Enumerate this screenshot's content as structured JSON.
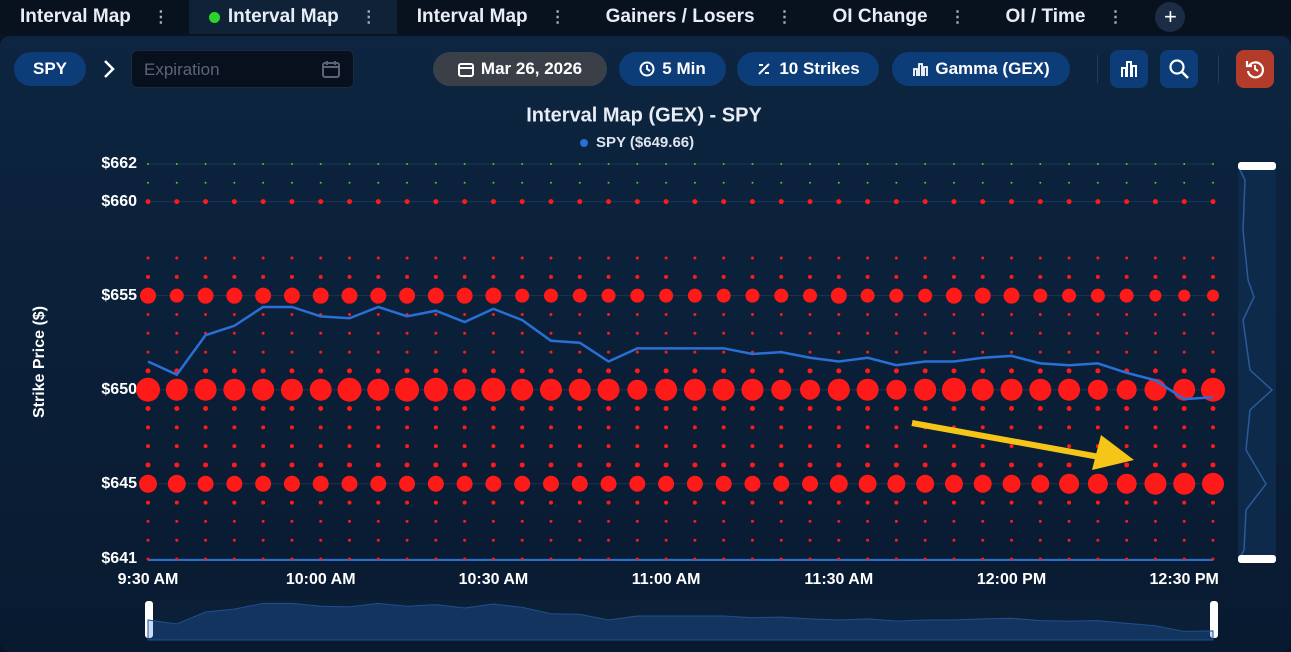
{
  "tabs": [
    "Interval Map",
    "Interval Map",
    "Interval Map",
    "Gainers / Losers",
    "OI Change",
    "OI / Time"
  ],
  "active_tab": 1,
  "add_tab": "+",
  "toolbar": {
    "symbol": "SPY",
    "expiration_placeholder": "Expiration",
    "date": "Mar 26, 2026",
    "interval": "5 Min",
    "strikes": "10 Strikes",
    "metric": "Gamma (GEX)"
  },
  "chart_data": {
    "type": "bubble",
    "title": "Interval Map (GEX) - SPY",
    "y_label": "Strike Price ($)",
    "categories": [
      "9:30 AM",
      null,
      null,
      null,
      null,
      null,
      "10:00 AM",
      null,
      null,
      null,
      null,
      null,
      "10:30 AM",
      null,
      null,
      null,
      null,
      null,
      "11:00 AM",
      null,
      null,
      null,
      null,
      null,
      "11:30 AM",
      null,
      null,
      null,
      null,
      null,
      "12:00 PM",
      null,
      null,
      null,
      null,
      null,
      "12:30 PM",
      null
    ],
    "ylim": [
      641,
      662
    ],
    "yticks": [
      {
        "value": 641,
        "label": "$641"
      },
      {
        "value": 645,
        "label": "$645"
      },
      {
        "value": 650,
        "label": "$650"
      },
      {
        "value": 655,
        "label": "$655"
      },
      {
        "value": 660,
        "label": "$660"
      },
      {
        "value": 662,
        "label": "$662"
      }
    ],
    "grid": true,
    "rows": [
      {
        "strike": 662,
        "color": "#44cc33",
        "size": 1
      },
      {
        "strike": 661,
        "color": "#44cc33",
        "size": 1
      },
      {
        "strike": 660,
        "color": "#ff1a1a",
        "size": 2.5
      },
      {
        "strike": 657,
        "color": "#ff1a1a",
        "size": 1.5
      },
      {
        "strike": 656,
        "color": "#ff1a1a",
        "size": 2
      },
      {
        "strike": 655,
        "color": "#ff1a1a",
        "sizes": [
          8,
          7,
          8,
          8,
          8,
          8,
          8,
          8,
          8,
          8,
          8,
          8,
          8,
          7,
          7,
          7,
          7,
          7,
          7,
          7,
          7,
          7,
          7,
          7,
          8,
          7,
          7,
          7,
          8,
          8,
          8,
          7,
          7,
          7,
          7,
          6,
          6,
          6
        ]
      },
      {
        "strike": 654,
        "color": "#ff1a1a",
        "size": 1.5
      },
      {
        "strike": 653,
        "color": "#ff1a1a",
        "size": 1.5
      },
      {
        "strike": 652,
        "color": "#ff1a1a",
        "size": 1.5
      },
      {
        "strike": 651,
        "color": "#ff1a1a",
        "size": 2.5
      },
      {
        "strike": 650,
        "color": "#ff1a1a",
        "sizes": [
          12,
          11,
          11,
          11,
          11,
          11,
          11,
          12,
          11,
          12,
          12,
          11,
          12,
          11,
          11,
          11,
          11,
          10,
          11,
          11,
          11,
          11,
          10,
          10,
          11,
          11,
          10,
          11,
          12,
          11,
          11,
          11,
          11,
          10,
          10,
          11,
          11,
          12
        ]
      },
      {
        "strike": 649,
        "color": "#ff1a1a",
        "size": 2.5
      },
      {
        "strike": 648,
        "color": "#ff1a1a",
        "size": 2
      },
      {
        "strike": 647,
        "color": "#ff1a1a",
        "size": 2
      },
      {
        "strike": 646,
        "color": "#ff1a1a",
        "size": 2.5
      },
      {
        "strike": 645,
        "color": "#ff1a1a",
        "sizes": [
          9,
          9,
          8,
          8,
          8,
          8,
          8,
          8,
          8,
          8,
          8,
          8,
          8,
          8,
          8,
          8,
          8,
          8,
          8,
          8,
          8,
          8,
          8,
          8,
          9,
          9,
          9,
          9,
          9,
          9,
          9,
          9,
          10,
          10,
          10,
          11,
          11,
          11
        ]
      },
      {
        "strike": 644,
        "color": "#ff1a1a",
        "size": 2
      },
      {
        "strike": 643,
        "color": "#ff1a1a",
        "size": 1.5
      },
      {
        "strike": 642,
        "color": "#ff1a1a",
        "size": 1.5
      },
      {
        "strike": 641,
        "color": "#ff1a1a",
        "size": 1.5
      }
    ],
    "series": [
      {
        "name": "SPY ($649.66)",
        "color": "#2a6fd6",
        "values": [
          651.5,
          650.8,
          652.9,
          653.4,
          654.4,
          654.4,
          653.9,
          653.8,
          654.4,
          653.9,
          654.2,
          653.6,
          654.3,
          653.7,
          652.6,
          652.5,
          651.5,
          652.2,
          652.2,
          652.2,
          652.2,
          651.9,
          652.0,
          651.7,
          651.5,
          651.7,
          651.3,
          651.5,
          651.5,
          651.7,
          651.8,
          651.4,
          651.3,
          651.4,
          650.9,
          650.5,
          649.5,
          649.6
        ]
      }
    ]
  }
}
